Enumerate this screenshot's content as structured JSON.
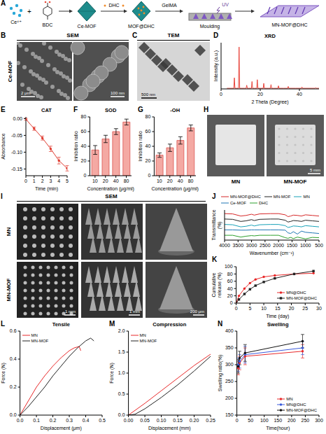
{
  "schematic": {
    "panel": "A",
    "ion": "Ce⁴⁺",
    "plus": "+",
    "linker": "BDC",
    "mof": "Ce-MOF",
    "drug": "DHC",
    "loaded": "MOF@DHC",
    "matrix": "GelMA",
    "light": "UV",
    "process": "Moulding",
    "product": "MN-MOF@DHC"
  },
  "images": [
    {
      "panel": "B",
      "method": "SEM",
      "sample": "Ce-MOF",
      "scale_bars": [
        "2 μm",
        "100 nm"
      ]
    },
    {
      "panel": "C",
      "method": "TEM",
      "scale_bars": [
        "500 nm"
      ]
    },
    {
      "panel": "H",
      "labels": [
        "MN",
        "MN-MOF"
      ],
      "scale_bars": [
        "5 mm"
      ]
    },
    {
      "panel": "I",
      "method": "SEM",
      "rows": [
        "MN",
        "MN-MOF"
      ],
      "scale_bars": [
        "1 mm",
        "1 mm",
        "200 μm"
      ]
    }
  ],
  "chart_data": [
    {
      "panel": "D",
      "type": "line",
      "title": "XRD",
      "x_label": "2 Theta (Degree)",
      "y_label": "Intensity (a.u.)",
      "x": [
        3,
        6.5,
        6.8,
        7.1,
        7.5,
        8.9,
        9.2,
        9.5,
        10,
        12,
        12.8,
        13.1,
        13.4,
        14,
        15.5,
        15.8,
        16.1,
        17,
        18.2,
        18.5,
        18.8,
        20,
        21.5,
        21.8,
        22.1,
        24,
        25.2,
        25.5,
        25.8,
        27,
        29,
        29.3,
        29.6,
        32,
        34,
        34.3,
        34.6,
        38,
        41,
        41.3,
        41.6,
        45,
        48,
        48.3,
        48.6,
        50
      ],
      "values": [
        10,
        10,
        180,
        10,
        10,
        10,
        680,
        10,
        10,
        10,
        10,
        60,
        10,
        10,
        10,
        120,
        10,
        10,
        10,
        150,
        10,
        10,
        10,
        90,
        10,
        10,
        10,
        70,
        10,
        10,
        10,
        50,
        10,
        10,
        10,
        40,
        10,
        10,
        10,
        30,
        10,
        10,
        10,
        20,
        10,
        10
      ],
      "color": "#e8453c",
      "xlim": [
        0,
        50
      ],
      "xticks": [
        0,
        20,
        40
      ],
      "ylim": [
        0,
        750
      ],
      "tick_labels": "x"
    },
    {
      "panel": "E",
      "type": "line",
      "title": "CAT",
      "x_label": "Time (min)",
      "y_label": "Absorbance",
      "x": [
        0,
        1,
        2,
        3,
        4,
        5
      ],
      "values": [
        -0.002,
        -0.03,
        -0.058,
        -0.09,
        -0.125,
        -0.148
      ],
      "errors": [
        0.003,
        0.005,
        0.006,
        0.008,
        0.01,
        0.008
      ],
      "color": "#e03c31",
      "marker": "circle",
      "xlim": [
        0,
        5
      ],
      "xticks": [
        0,
        1,
        2,
        3,
        4,
        5
      ],
      "ylim": [
        -0.17,
        0.005
      ],
      "yticks": [
        {
          "value": 0,
          "label": "0.00"
        },
        {
          "value": -0.05,
          "label": "-0.05"
        },
        {
          "value": -0.1,
          "label": "-0.10"
        },
        {
          "value": -0.15,
          "label": "-0.15"
        }
      ]
    },
    {
      "panel": "F",
      "type": "bar",
      "title": "SOD",
      "x_label": "Concentration (μg/ml)",
      "y_label": "Inhibition ratio",
      "categories": [
        "10",
        "20",
        "40",
        "80"
      ],
      "values": [
        35,
        50,
        60,
        73
      ],
      "errors": [
        6,
        5,
        4,
        4
      ],
      "color": "#f4a9a3",
      "ylim": [
        0,
        80
      ],
      "yticks": [
        0,
        20,
        40,
        60,
        80
      ]
    },
    {
      "panel": "G",
      "type": "bar",
      "title": "-OH",
      "x_label": "Concentration (μg/ml)",
      "y_label": "Inhibition ratio",
      "categories": [
        "10",
        "20",
        "40",
        "80"
      ],
      "values": [
        28,
        38,
        48,
        65
      ],
      "errors": [
        3,
        5,
        5,
        4
      ],
      "color": "#f4a9a3",
      "ylim": [
        0,
        80
      ],
      "yticks": [
        0,
        20,
        40,
        60,
        80
      ]
    },
    {
      "panel": "J",
      "type": "line",
      "x_label": "Wavenumber (cm⁻¹)",
      "y_label": "Transmittance (%)",
      "x": [
        4000,
        3700,
        3400,
        3200,
        3000,
        2900,
        2700,
        2300,
        2000,
        1750,
        1650,
        1550,
        1450,
        1300,
        1150,
        1000,
        750,
        500
      ],
      "series": [
        {
          "name": "MN-MOF@DHC",
          "color": "#d62728",
          "values": [
            88,
            87,
            80,
            82,
            86,
            83,
            87,
            88,
            88,
            84,
            78,
            80,
            83,
            82,
            80,
            84,
            82,
            80
          ]
        },
        {
          "name": "MN-MOF",
          "color": "#222222",
          "values": [
            70,
            69,
            62,
            64,
            68,
            65,
            69,
            70,
            70,
            66,
            60,
            62,
            65,
            64,
            62,
            66,
            64,
            62
          ]
        },
        {
          "name": "MN",
          "color": "#17a2b8",
          "values": [
            52,
            51,
            44,
            46,
            50,
            47,
            51,
            52,
            52,
            48,
            42,
            44,
            47,
            46,
            44,
            48,
            46,
            44
          ]
        },
        {
          "name": "Ce-MOF",
          "color": "#1f77b4",
          "values": [
            34,
            34,
            33,
            33,
            34,
            34,
            34,
            34,
            34,
            33,
            24,
            22,
            28,
            20,
            30,
            26,
            24,
            22
          ]
        },
        {
          "name": "DHC",
          "color": "#2ca02c",
          "values": [
            16,
            16,
            10,
            13,
            15,
            14,
            16,
            16,
            16,
            8,
            6,
            9,
            5,
            10,
            7,
            4,
            9,
            8
          ]
        }
      ],
      "xlim": [
        4000,
        500
      ],
      "xticks": [
        4000,
        3500,
        3000,
        2500,
        2000,
        1500,
        1000,
        500
      ],
      "ylim": [
        0,
        100
      ],
      "tick_labels": "x",
      "legend": "top"
    },
    {
      "panel": "K",
      "type": "line",
      "x_label": "Time (day)",
      "y_label": "Cumulative release (%)",
      "x": [
        0,
        1,
        3,
        5,
        7,
        10,
        14,
        21,
        28
      ],
      "series": [
        {
          "name": "MN@DHC",
          "color": "#e8292a",
          "marker": "circle",
          "values": [
            0,
            20,
            40,
            55,
            65,
            72,
            76,
            80,
            82
          ]
        },
        {
          "name": "MN-MOF@DHC",
          "color": "#222222",
          "marker": "square",
          "values": [
            0,
            10,
            25,
            38,
            48,
            58,
            68,
            80,
            88
          ]
        }
      ],
      "xlim": [
        0,
        30
      ],
      "xticks": [
        0,
        5,
        10,
        15,
        20,
        25,
        30
      ],
      "ylim": [
        0,
        100
      ],
      "yticks": [
        0,
        20,
        40,
        60,
        80,
        100
      ],
      "legend": "lower right"
    },
    {
      "panel": "L",
      "type": "line",
      "title": "Tensile",
      "x_label": "Displacement (μm)",
      "y_label": "Force (N)",
      "series": [
        {
          "name": "MN",
          "color": "#e8292a",
          "x": [
            0,
            0.05,
            0.1,
            0.15,
            0.2,
            0.25,
            0.3,
            0.33,
            0.36,
            0.37
          ],
          "values": [
            0,
            0.1,
            0.2,
            0.28,
            0.35,
            0.41,
            0.46,
            0.48,
            0.49,
            0.46
          ]
        },
        {
          "name": "MN-MOF",
          "color": "#222222",
          "x": [
            0,
            0.05,
            0.1,
            0.15,
            0.2,
            0.25,
            0.3,
            0.35,
            0.4,
            0.43,
            0.45
          ],
          "values": [
            0,
            0.06,
            0.13,
            0.2,
            0.28,
            0.35,
            0.42,
            0.48,
            0.53,
            0.55,
            0.53
          ]
        }
      ],
      "xlim": [
        0,
        0.5
      ],
      "xticks": [
        {
          "value": 0,
          "label": "0.0"
        },
        0.1,
        0.2,
        0.3,
        0.4,
        0.5
      ],
      "ylim": [
        0,
        0.6
      ],
      "yticks": [
        {
          "value": 0,
          "label": "0.0"
        },
        0.2,
        0.4,
        0.6
      ],
      "legend": "upper left"
    },
    {
      "panel": "M",
      "type": "line",
      "title": "Compression",
      "x_label": "Displacement (mm)",
      "y_label": "Force (N)",
      "series": [
        {
          "name": "MN",
          "color": "#e8292a",
          "x": [
            0,
            0.05,
            0.1,
            0.15,
            0.2,
            0.25
          ],
          "values": [
            0,
            0.28,
            0.58,
            0.88,
            1.18,
            1.45
          ]
        },
        {
          "name": "MN-MOF",
          "color": "#222222",
          "x": [
            0,
            0.02,
            0.05,
            0.1,
            0.15,
            0.2,
            0.25
          ],
          "values": [
            0,
            0.02,
            0.15,
            0.42,
            0.72,
            1.05,
            1.4
          ]
        }
      ],
      "xlim": [
        0,
        0.25
      ],
      "xticks": [
        {
          "value": 0,
          "label": "0.00"
        },
        0.05,
        {
          "value": 0.1,
          "label": "0.10"
        },
        0.15,
        {
          "value": 0.2,
          "label": "0.20"
        },
        0.25
      ],
      "ylim": [
        0,
        2
      ],
      "yticks": [
        {
          "value": 0,
          "label": "0.0"
        },
        0.5,
        {
          "value": 1,
          "label": "1.0"
        },
        1.5,
        {
          "value": 2,
          "label": "2.0"
        }
      ],
      "legend": "upper left"
    },
    {
      "panel": "N",
      "type": "line",
      "title": "Swelling",
      "x_label": "Time(hour)",
      "y_label": "Swelling ratio(%)",
      "x": [
        5,
        10,
        30,
        240
      ],
      "series": [
        {
          "name": "MN",
          "color": "#e8292a",
          "marker": "circle",
          "values": [
            290,
            305,
            325,
            340
          ],
          "errors": [
            20,
            20,
            25,
            20
          ]
        },
        {
          "name": "MN@DHC",
          "color": "#3b5bdb",
          "marker": "circle",
          "values": [
            300,
            310,
            330,
            350
          ],
          "errors": [
            20,
            20,
            25,
            20
          ]
        },
        {
          "name": "MN-MOF@DHC",
          "color": "#111111",
          "marker": "circle",
          "values": [
            295,
            320,
            335,
            370
          ],
          "errors": [
            20,
            20,
            25,
            20
          ]
        }
      ],
      "xlim": [
        0,
        300
      ],
      "xticks": [
        0,
        50,
        100,
        150,
        200,
        250,
        300
      ],
      "ylim": [
        150,
        400
      ],
      "yticks": [
        150,
        200,
        250,
        300,
        350,
        400
      ],
      "legend": "lower right"
    }
  ]
}
